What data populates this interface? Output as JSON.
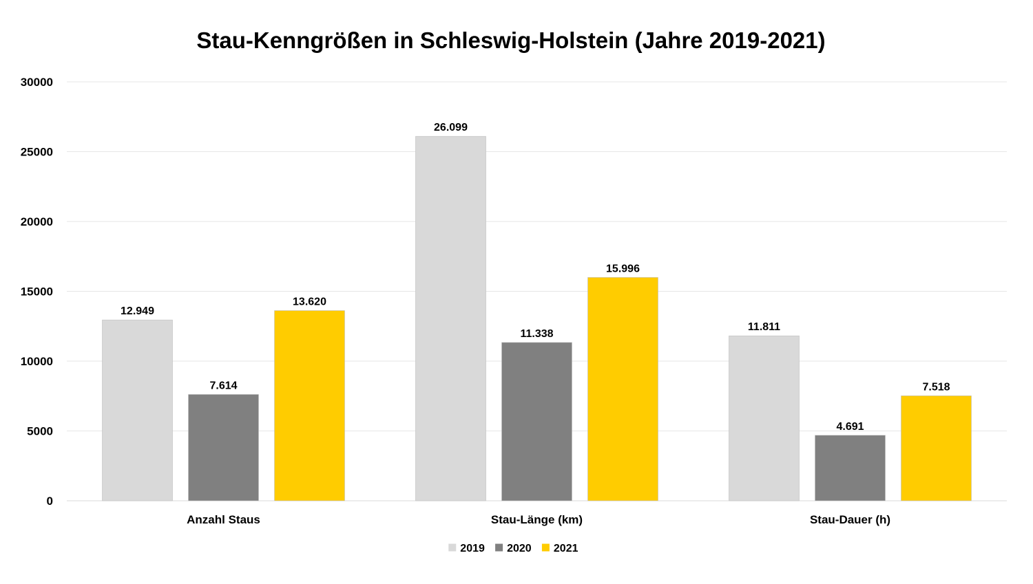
{
  "chart_data": {
    "type": "bar",
    "title": "Stau-Kenngrößen in Schleswig-Holstein (Jahre 2019-2021)",
    "xlabel": "",
    "ylabel": "",
    "ylim": [
      0,
      30000
    ],
    "yticks": [
      "0",
      "5000",
      "10000",
      "15000",
      "20000",
      "25000",
      "30000"
    ],
    "ytick_values": [
      0,
      5000,
      10000,
      15000,
      20000,
      25000,
      30000
    ],
    "grid": true,
    "legend_position": "bottom",
    "categories": [
      "Anzahl Staus",
      "Stau-Länge (km)",
      "Stau-Dauer (h)"
    ],
    "series": [
      {
        "name": "2019",
        "color": "#d9d9d9",
        "values": [
          12949,
          26099,
          11811
        ],
        "labels": [
          "12.949",
          "26.099",
          "11.811"
        ]
      },
      {
        "name": "2020",
        "color": "#808080",
        "values": [
          7614,
          11338,
          4691
        ],
        "labels": [
          "7.614",
          "11.338",
          "4.691"
        ]
      },
      {
        "name": "2021",
        "color": "#ffcc00",
        "values": [
          13620,
          15996,
          7518
        ],
        "labels": [
          "13.620",
          "15.996",
          "7.518"
        ]
      }
    ]
  }
}
